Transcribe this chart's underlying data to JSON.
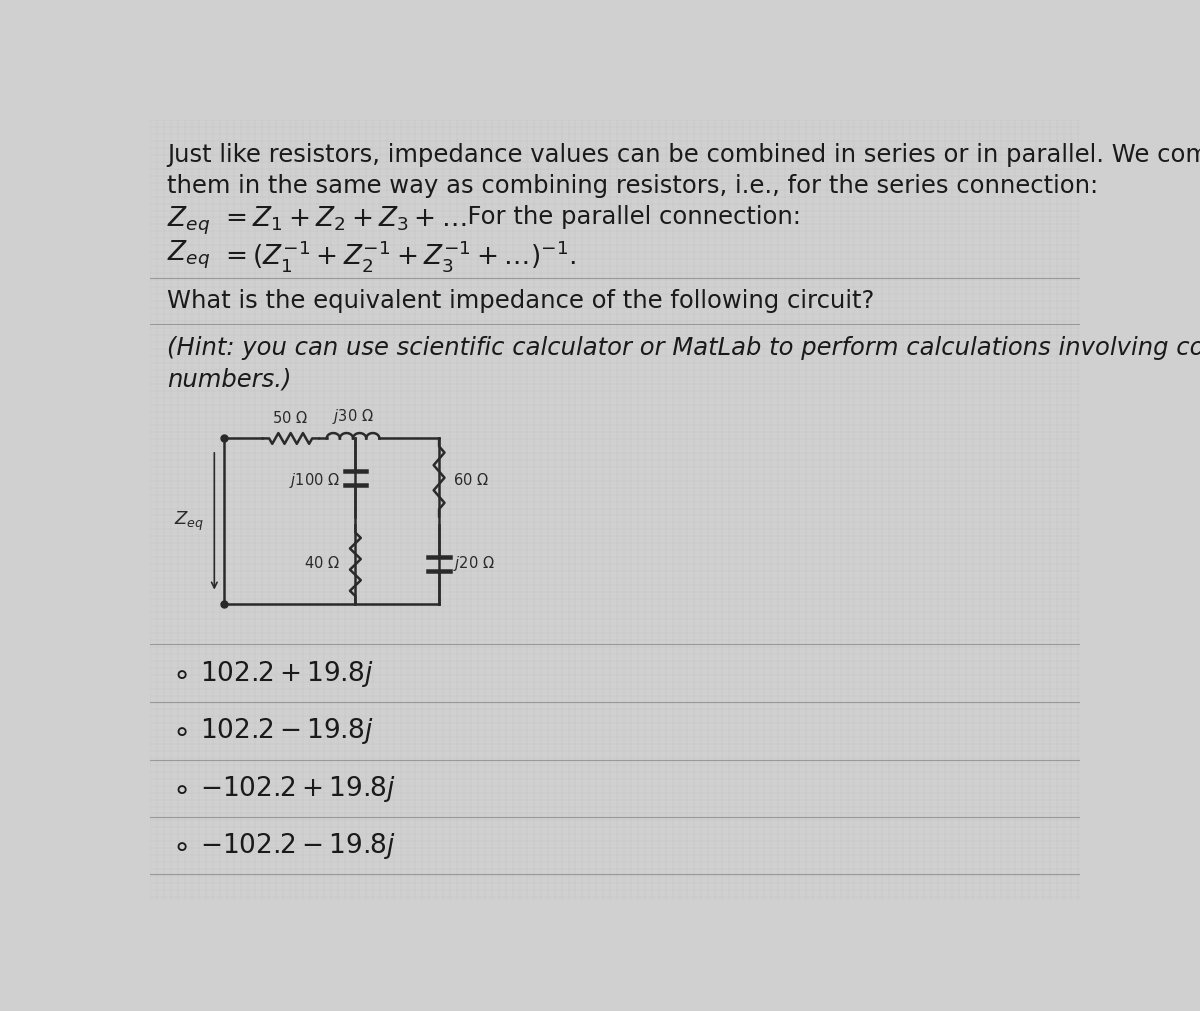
{
  "bg_color": "#d0d0d0",
  "text_color": "#1a1a1a",
  "circuit_color": "#2a2a2a",
  "sep_color": "#999999",
  "grid_color": "#bbbbbb",
  "line1": "Just like resistors, impedance values can be combined in series or in parallel. We combine",
  "line2": "them in the same way as combining resistors, i.e., for the series connection:",
  "question": "What is the equivalent impedance of the following circuit?",
  "hint_line1": "(Hint: you can use scientific calculator or MatLab to perform calculations involving complex",
  "hint_line2": "numbers.)",
  "font_size_body": 17.5,
  "font_size_eq": 19,
  "font_size_circuit": 10.5,
  "font_size_options": 19,
  "options": [
    "O  102.2 + 19.8j",
    "O  102.2 − 19.8j",
    "O  −102.2 + 19.8j",
    "O  −102.2 − 19.8j"
  ]
}
